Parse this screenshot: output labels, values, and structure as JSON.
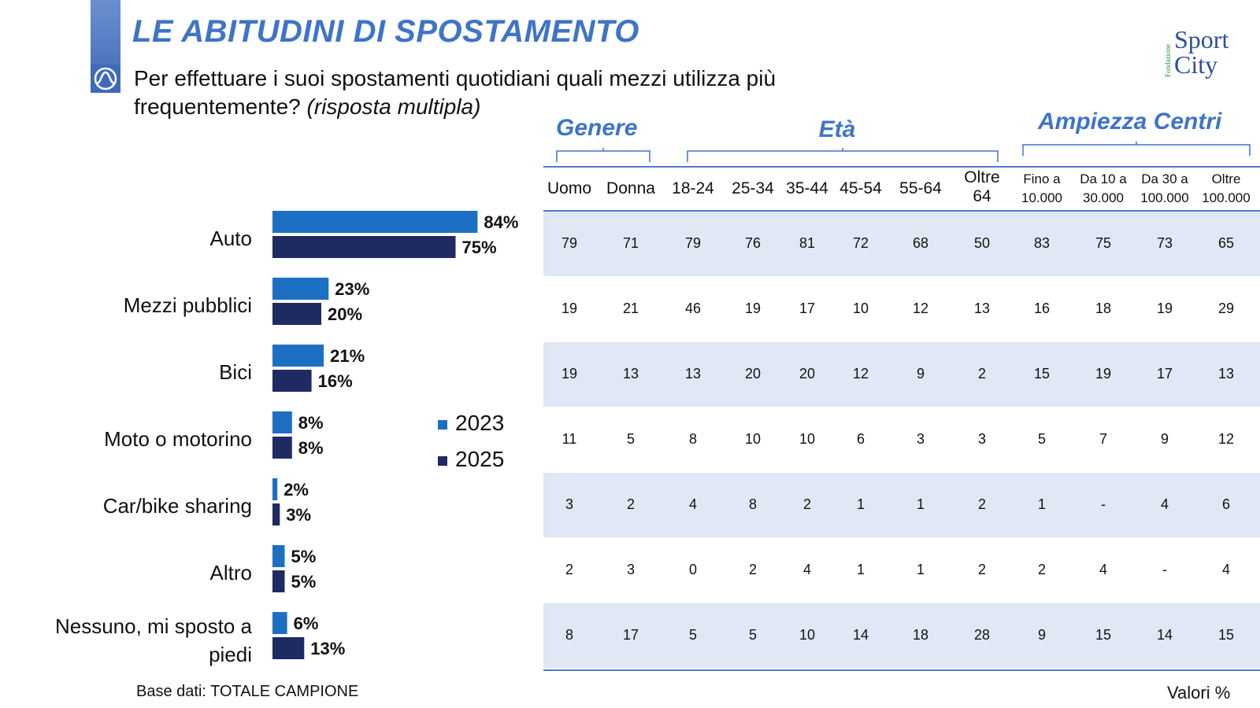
{
  "title": "LE ABITUDINI DI SPOSTAMENTO",
  "question": {
    "line1": "Per effettuare i suoi spostamenti quotidiani quali mezzi utilizza più",
    "line2_normal": "frequentemente?",
    "line2_italic": "(risposta multipla)"
  },
  "logo": {
    "line1": "Sport",
    "line2": "City",
    "small": "Fondazione"
  },
  "colors": {
    "accent": "#3f74c6",
    "series2023": "#1d6fc4",
    "series2025": "#1f2a63",
    "row_shade": "#dfe8f4",
    "rule": "#4b7bd1"
  },
  "chart_data": {
    "type": "bar",
    "orientation": "horizontal",
    "categories": [
      "Auto",
      "Mezzi pubblici",
      "Bici",
      "Moto o motorino",
      "Car/bike sharing",
      "Altro",
      "Nessuno, mi sposto a piedi"
    ],
    "series": [
      {
        "name": "2023",
        "values": [
          84,
          23,
          21,
          8,
          2,
          5,
          6
        ]
      },
      {
        "name": "2025",
        "values": [
          75,
          20,
          16,
          8,
          3,
          5,
          13
        ]
      }
    ],
    "value_suffix": "%",
    "legend_position": "right"
  },
  "table": {
    "groups": [
      {
        "label": "Genere"
      },
      {
        "label": "Età"
      },
      {
        "label": "Ampiezza Centri"
      }
    ],
    "headers": [
      {
        "l1": "Uomo",
        "l2": ""
      },
      {
        "l1": "Donna",
        "l2": ""
      },
      {
        "l1": "18-24",
        "l2": ""
      },
      {
        "l1": "25-34",
        "l2": ""
      },
      {
        "l1": "35-44",
        "l2": ""
      },
      {
        "l1": "45-54",
        "l2": ""
      },
      {
        "l1": "55-64",
        "l2": ""
      },
      {
        "l1": "Oltre",
        "l2": "64"
      },
      {
        "l1": "Fino a",
        "l2": "10.000"
      },
      {
        "l1": "Da 10 a",
        "l2": "30.000"
      },
      {
        "l1": "Da 30 a",
        "l2": "100.000"
      },
      {
        "l1": "Oltre",
        "l2": "100.000"
      }
    ],
    "rows": [
      [
        "79",
        "71",
        "79",
        "76",
        "81",
        "72",
        "68",
        "50",
        "83",
        "75",
        "73",
        "65"
      ],
      [
        "19",
        "21",
        "46",
        "19",
        "17",
        "10",
        "12",
        "13",
        "16",
        "18",
        "19",
        "29"
      ],
      [
        "19",
        "13",
        "13",
        "20",
        "20",
        "12",
        "9",
        "2",
        "15",
        "19",
        "17",
        "13"
      ],
      [
        "11",
        "5",
        "8",
        "10",
        "10",
        "6",
        "3",
        "3",
        "5",
        "7",
        "9",
        "12"
      ],
      [
        "3",
        "2",
        "4",
        "8",
        "2",
        "1",
        "1",
        "2",
        "1",
        "-",
        "4",
        "6"
      ],
      [
        "2",
        "3",
        "0",
        "2",
        "4",
        "1",
        "1",
        "2",
        "2",
        "4",
        "-",
        "4"
      ],
      [
        "8",
        "17",
        "5",
        "5",
        "10",
        "14",
        "18",
        "28",
        "9",
        "15",
        "14",
        "15"
      ]
    ]
  },
  "footer": {
    "base": "Base dati: TOTALE CAMPIONE",
    "units": "Valori %"
  }
}
